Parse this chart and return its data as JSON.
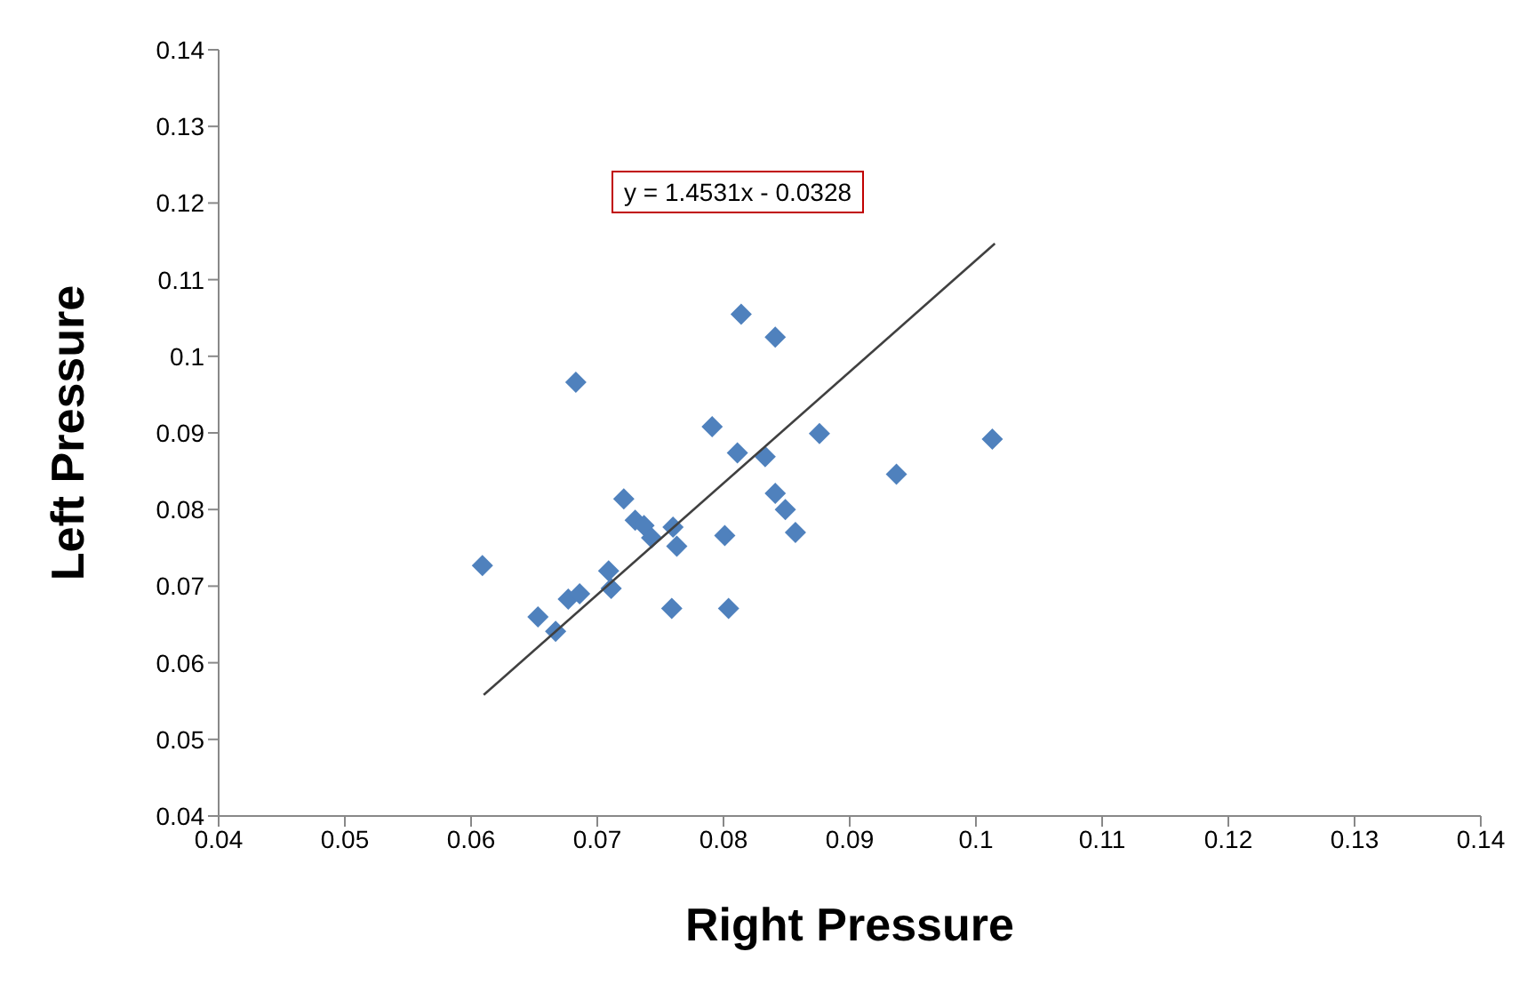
{
  "chart_data": {
    "type": "scatter",
    "xlabel": "Right Pressure",
    "ylabel": "Left Pressure",
    "annotations": [
      "y = 1.4531x - 0.0328"
    ],
    "xlim": [
      0.04,
      0.14
    ],
    "xticks": [
      0.04,
      0.05,
      0.06,
      0.07,
      0.08,
      0.09,
      0.1,
      0.11,
      0.12,
      0.13,
      0.14
    ],
    "ylim": [
      0.04,
      0.14
    ],
    "yticks": [
      0.04,
      0.05,
      0.06,
      0.07,
      0.08,
      0.09,
      0.1,
      0.11,
      0.12,
      0.13,
      0.14
    ],
    "series": [
      {
        "type": "scatter",
        "marker": "diamond",
        "color": "#4f81bd",
        "x": [
          0.0609,
          0.0653,
          0.0667,
          0.0677,
          0.0686,
          0.0683,
          0.0709,
          0.0711,
          0.0721,
          0.073,
          0.0737,
          0.0743,
          0.0759,
          0.076,
          0.0763,
          0.0791,
          0.0801,
          0.0804,
          0.0814,
          0.0811,
          0.0833,
          0.0841,
          0.0841,
          0.0849,
          0.0857,
          0.0876,
          0.0937,
          0.1013
        ],
        "values": [
          0.0727,
          0.066,
          0.0641,
          0.0683,
          0.069,
          0.0966,
          0.072,
          0.0697,
          0.0814,
          0.0786,
          0.0779,
          0.0763,
          0.0671,
          0.0777,
          0.0752,
          0.0908,
          0.0766,
          0.0671,
          0.1055,
          0.0874,
          0.0869,
          0.1025,
          0.0821,
          0.08,
          0.077,
          0.0899,
          0.0846,
          0.0892
        ]
      },
      {
        "type": "line",
        "marker": "none",
        "color": "#404040",
        "x": [
          0.061,
          0.1015
        ],
        "values": [
          0.0558,
          0.1147
        ]
      }
    ]
  }
}
